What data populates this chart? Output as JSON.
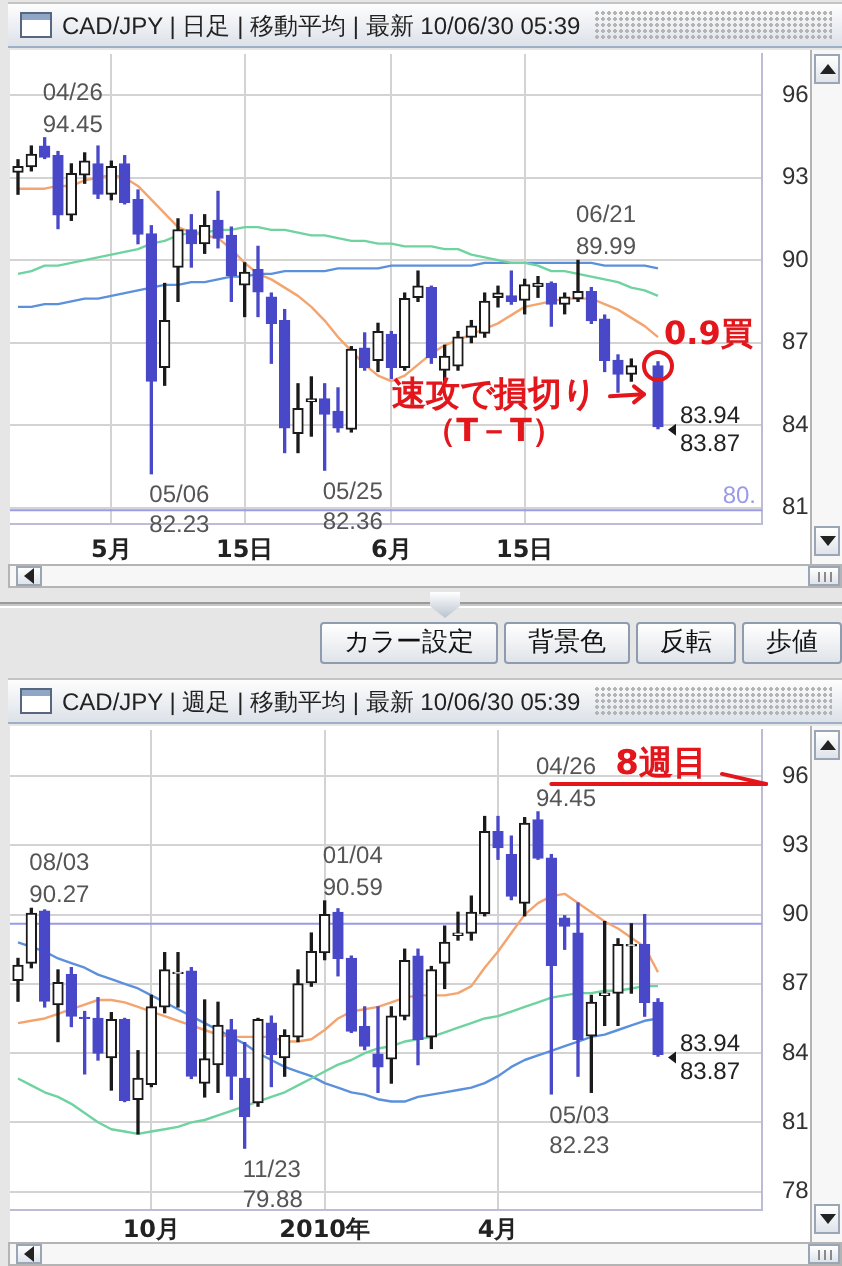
{
  "chart_data": [
    {
      "type": "candlestick",
      "title": "CAD/JPY | 日足 | 移動平均 | 最新 10/06/30 05:39",
      "categories": [
        null,
        null,
        null,
        null,
        null,
        null,
        null,
        "5月",
        null,
        null,
        null,
        null,
        null,
        null,
        null,
        null,
        null,
        "15日",
        null,
        null,
        null,
        null,
        null,
        null,
        null,
        null,
        null,
        null,
        "6月",
        null,
        null,
        null,
        null,
        null,
        null,
        null,
        null,
        null,
        "15日",
        null,
        null,
        null,
        null,
        null,
        null,
        null,
        null,
        null,
        null
      ],
      "ohlc": [
        [
          93.2,
          93.65,
          92.4,
          93.4
        ],
        [
          93.4,
          94.15,
          93.25,
          93.85
        ],
        [
          94.15,
          94.45,
          93.7,
          93.75
        ],
        [
          93.8,
          93.95,
          91.15,
          91.65
        ],
        [
          91.65,
          93.5,
          91.45,
          93.15
        ],
        [
          93.1,
          93.9,
          92.8,
          93.6
        ],
        [
          93.5,
          94.15,
          92.25,
          92.4
        ],
        [
          92.4,
          93.6,
          92.2,
          93.4
        ],
        [
          93.5,
          93.8,
          92.05,
          92.1
        ],
        [
          92.2,
          92.55,
          90.6,
          90.95
        ],
        [
          90.95,
          91.25,
          82.23,
          85.6
        ],
        [
          86.1,
          89.15,
          85.45,
          87.8
        ],
        [
          89.75,
          91.5,
          88.5,
          91.1
        ],
        [
          91.1,
          91.65,
          89.75,
          90.6
        ],
        [
          90.6,
          91.65,
          90.25,
          91.25
        ],
        [
          91.45,
          92.5,
          90.45,
          90.8
        ],
        [
          90.9,
          91.2,
          88.5,
          89.45
        ],
        [
          89.1,
          89.9,
          87.95,
          89.55
        ],
        [
          89.65,
          90.5,
          87.95,
          88.85
        ],
        [
          88.65,
          88.8,
          86.25,
          87.7
        ],
        [
          87.8,
          88.2,
          83.0,
          83.9
        ],
        [
          83.7,
          85.5,
          83.0,
          84.6
        ],
        [
          84.85,
          85.75,
          83.6,
          84.95
        ],
        [
          84.95,
          85.5,
          82.36,
          84.4
        ],
        [
          84.5,
          85.35,
          83.75,
          83.9
        ],
        [
          83.85,
          86.85,
          83.75,
          86.75
        ],
        [
          86.8,
          87.35,
          86.0,
          86.1
        ],
        [
          86.35,
          87.7,
          85.95,
          87.4
        ],
        [
          87.3,
          87.4,
          85.7,
          86.1
        ],
        [
          86.1,
          88.8,
          86.0,
          88.6
        ],
        [
          88.65,
          89.6,
          88.5,
          89.05
        ],
        [
          89.0,
          89.05,
          86.25,
          86.45
        ],
        [
          86.0,
          86.9,
          85.6,
          86.5
        ],
        [
          86.15,
          87.4,
          86.0,
          87.2
        ],
        [
          87.2,
          87.8,
          87.0,
          87.6
        ],
        [
          87.35,
          88.8,
          87.2,
          88.5
        ],
        [
          88.65,
          89.05,
          88.3,
          88.8
        ],
        [
          88.7,
          89.6,
          88.4,
          88.5
        ],
        [
          88.55,
          89.3,
          88.05,
          89.1
        ],
        [
          89.05,
          89.4,
          88.65,
          89.15
        ],
        [
          89.15,
          89.2,
          87.6,
          88.4
        ],
        [
          88.4,
          88.8,
          88.05,
          88.65
        ],
        [
          88.6,
          89.99,
          88.5,
          88.85
        ],
        [
          88.85,
          89.0,
          87.7,
          87.8
        ],
        [
          87.85,
          88.0,
          85.95,
          86.35
        ],
        [
          86.35,
          86.55,
          85.2,
          85.85
        ],
        [
          85.85,
          86.4,
          85.6,
          86.15
        ],
        null,
        [
          86.15,
          86.3,
          83.87,
          83.94
        ]
      ],
      "colors": [
        "#1a1a1a",
        "#1a1a1a",
        "#4848c8",
        "#4848c8",
        "#1a1a1a",
        "#1a1a1a",
        "#4848c8",
        "#1a1a1a",
        "#4848c8",
        "#4848c8",
        "#4848c8",
        "#1a1a1a",
        "#1a1a1a",
        "#4848c8",
        "#1a1a1a",
        "#4848c8",
        "#4848c8",
        "#1a1a1a",
        "#4848c8",
        "#4848c8",
        "#4848c8",
        "#1a1a1a",
        "#1a1a1a",
        "#4848c8",
        "#4848c8",
        "#1a1a1a",
        "#4848c8",
        "#1a1a1a",
        "#4848c8",
        "#1a1a1a",
        "#1a1a1a",
        "#4848c8",
        "#1a1a1a",
        "#1a1a1a",
        "#1a1a1a",
        "#1a1a1a",
        "#1a1a1a",
        "#4848c8",
        "#1a1a1a",
        "#1a1a1a",
        "#4848c8",
        "#1a1a1a",
        "#1a1a1a",
        "#4848c8",
        "#4848c8",
        "#4848c8",
        "#1a1a1a",
        null,
        "#4848c8"
      ],
      "series": [
        {
          "type": "line",
          "color": "#f4a46e",
          "values": [
            92.6,
            92.6,
            92.6,
            92.7,
            92.7,
            92.9,
            93.0,
            93.1,
            93.0,
            92.7,
            92.2,
            91.7,
            91.2,
            91.0,
            90.9,
            90.8,
            90.4,
            89.9,
            89.5,
            89.3,
            89.0,
            88.7,
            88.3,
            87.8,
            87.2,
            86.7,
            86.2,
            85.8,
            85.6,
            85.8,
            86.2,
            86.6,
            86.9,
            87.1,
            87.3,
            87.5,
            87.7,
            88.0,
            88.3,
            88.4,
            88.5,
            88.6,
            88.6,
            88.6,
            88.4,
            88.2,
            87.9,
            87.6,
            87.2
          ]
        },
        {
          "type": "line",
          "color": "#6fd3a0",
          "values": [
            89.5,
            89.6,
            89.8,
            89.8,
            89.9,
            90.0,
            90.1,
            90.2,
            90.3,
            90.4,
            90.6,
            90.7,
            90.9,
            91.0,
            91.0,
            91.1,
            91.1,
            91.2,
            91.2,
            91.1,
            91.1,
            91.0,
            90.9,
            90.9,
            90.8,
            90.7,
            90.7,
            90.6,
            90.6,
            90.5,
            90.5,
            90.5,
            90.4,
            90.4,
            90.2,
            90.1,
            90.0,
            89.9,
            89.9,
            89.8,
            89.6,
            89.6,
            89.5,
            89.4,
            89.3,
            89.2,
            89.0,
            88.9,
            88.7
          ]
        },
        {
          "type": "line",
          "color": "#5b90dc",
          "values": [
            88.3,
            88.3,
            88.4,
            88.4,
            88.5,
            88.6,
            88.6,
            88.7,
            88.8,
            88.9,
            89.0,
            89.1,
            89.1,
            89.2,
            89.2,
            89.3,
            89.4,
            89.4,
            89.5,
            89.5,
            89.6,
            89.6,
            89.6,
            89.6,
            89.7,
            89.7,
            89.7,
            89.7,
            89.8,
            89.8,
            89.8,
            89.8,
            89.8,
            89.8,
            89.8,
            89.9,
            89.9,
            89.9,
            89.9,
            89.9,
            89.9,
            89.9,
            89.9,
            89.9,
            89.8,
            89.8,
            89.8,
            89.8,
            89.7
          ]
        }
      ],
      "ylim": [
        80.4,
        97.5
      ],
      "yticks": [
        81,
        84,
        87,
        90,
        93,
        96
      ],
      "grid": true,
      "ref_lines": [
        {
          "axis": "y",
          "value": 80.9,
          "color": "#9a9ae8"
        }
      ],
      "annotations": [
        "04/26",
        "94.45",
        "05/06",
        "82.23",
        "05/25",
        "82.36",
        "06/21",
        "89.99",
        "83.94",
        "83.87",
        "80.",
        "0.9買",
        "速攻で損切り",
        "（T－T）",
        "カラー設定",
        "背景色",
        "反転",
        "歩値"
      ]
    },
    {
      "type": "candlestick",
      "title": "CAD/JPY | 週足 | 移動平均 | 最新 10/06/30 05:39",
      "categories": [
        null,
        null,
        null,
        null,
        null,
        null,
        null,
        null,
        null,
        null,
        "10月",
        null,
        null,
        null,
        null,
        null,
        null,
        null,
        null,
        null,
        null,
        null,
        null,
        "2010年",
        null,
        null,
        null,
        null,
        null,
        null,
        null,
        null,
        null,
        null,
        null,
        null,
        "4月",
        null,
        null,
        null,
        null,
        null,
        null,
        null,
        null,
        null,
        null,
        null,
        null
      ],
      "ohlc": [
        [
          87.15,
          88.1,
          86.25,
          87.8
        ],
        [
          87.9,
          90.27,
          87.7,
          90.05
        ],
        [
          90.15,
          90.2,
          86.0,
          86.25
        ],
        [
          86.1,
          87.6,
          84.5,
          87.05
        ],
        [
          87.4,
          87.7,
          85.15,
          85.6
        ],
        [
          85.55,
          85.8,
          83.1,
          85.5
        ],
        [
          85.5,
          86.4,
          83.7,
          84.0
        ],
        [
          83.8,
          85.75,
          82.4,
          85.45
        ],
        [
          85.45,
          85.5,
          81.9,
          81.95
        ],
        [
          82.0,
          84.1,
          80.5,
          82.9
        ],
        [
          82.65,
          86.5,
          82.55,
          86.0
        ],
        [
          86.0,
          88.35,
          85.75,
          87.6
        ],
        [
          87.45,
          88.35,
          86.0,
          87.5
        ],
        [
          87.55,
          87.7,
          82.9,
          83.0
        ],
        [
          82.7,
          86.3,
          82.1,
          83.75
        ],
        [
          83.5,
          86.2,
          82.3,
          85.2
        ],
        [
          85.0,
          85.45,
          82.0,
          83.0
        ],
        [
          82.9,
          84.45,
          79.88,
          81.25
        ],
        [
          81.85,
          85.5,
          81.7,
          85.45
        ],
        [
          85.3,
          85.6,
          82.55,
          83.95
        ],
        [
          83.8,
          85.0,
          83.0,
          84.75
        ],
        [
          84.7,
          87.6,
          84.5,
          87.0
        ],
        [
          87.05,
          89.2,
          86.9,
          88.4
        ],
        [
          88.35,
          90.59,
          88.05,
          90.0
        ],
        [
          90.1,
          90.25,
          87.35,
          88.1
        ],
        [
          88.1,
          88.2,
          84.9,
          84.95
        ],
        [
          85.15,
          86.0,
          84.15,
          84.3
        ],
        [
          83.95,
          86.0,
          82.3,
          83.4
        ],
        [
          83.75,
          86.0,
          82.7,
          85.6
        ],
        [
          85.6,
          88.5,
          85.45,
          88.0
        ],
        [
          88.2,
          88.5,
          83.5,
          84.6
        ],
        [
          84.7,
          87.75,
          84.2,
          87.6
        ],
        [
          87.9,
          89.5,
          86.8,
          88.8
        ],
        [
          89.1,
          90.1,
          88.9,
          89.2
        ],
        [
          89.2,
          90.8,
          88.9,
          90.1
        ],
        [
          90.05,
          94.25,
          89.95,
          93.6
        ],
        [
          93.6,
          94.25,
          92.4,
          92.9
        ],
        [
          92.6,
          93.4,
          90.65,
          90.8
        ],
        [
          90.5,
          94.2,
          89.95,
          93.95
        ],
        [
          94.1,
          94.45,
          92.4,
          92.45
        ],
        [
          92.45,
          92.6,
          82.23,
          87.8
        ],
        [
          89.85,
          89.95,
          88.5,
          89.5
        ],
        [
          89.2,
          90.5,
          83.0,
          84.6
        ],
        [
          84.75,
          86.5,
          82.3,
          86.2
        ],
        [
          86.5,
          89.7,
          85.2,
          86.6
        ],
        [
          86.6,
          88.95,
          85.2,
          88.7
        ],
        [
          88.65,
          89.6,
          86.6,
          88.7
        ],
        [
          88.7,
          90.0,
          85.6,
          86.2
        ],
        [
          86.2,
          86.35,
          83.87,
          83.94
        ]
      ],
      "colors": [
        "#1a1a1a",
        "#1a1a1a",
        "#4848c8",
        "#1a1a1a",
        "#4848c8",
        "#4848c8",
        "#4848c8",
        "#1a1a1a",
        "#4848c8",
        "#1a1a1a",
        "#1a1a1a",
        "#1a1a1a",
        "#1a1a1a",
        "#4848c8",
        "#1a1a1a",
        "#1a1a1a",
        "#4848c8",
        "#4848c8",
        "#1a1a1a",
        "#4848c8",
        "#1a1a1a",
        "#1a1a1a",
        "#1a1a1a",
        "#1a1a1a",
        "#4848c8",
        "#4848c8",
        "#4848c8",
        "#4848c8",
        "#1a1a1a",
        "#1a1a1a",
        "#4848c8",
        "#1a1a1a",
        "#1a1a1a",
        "#1a1a1a",
        "#1a1a1a",
        "#1a1a1a",
        "#4848c8",
        "#4848c8",
        "#1a1a1a",
        "#4848c8",
        "#4848c8",
        "#4848c8",
        "#4848c8",
        "#1a1a1a",
        "#1a1a1a",
        "#1a1a1a",
        "#1a1a1a",
        "#4848c8",
        "#4848c8"
      ],
      "series": [
        {
          "type": "line",
          "color": "#f4a46e",
          "values": [
            85.3,
            85.4,
            85.5,
            85.7,
            85.9,
            86.1,
            86.3,
            86.3,
            86.2,
            86.0,
            85.8,
            85.6,
            85.4,
            85.2,
            85.0,
            84.8,
            84.7,
            84.7,
            84.7,
            84.7,
            84.5,
            84.5,
            84.6,
            85.0,
            85.5,
            85.8,
            85.9,
            86.0,
            86.2,
            86.4,
            86.5,
            86.5,
            86.5,
            86.6,
            86.9,
            87.7,
            88.4,
            89.2,
            90.0,
            90.5,
            90.8,
            90.9,
            90.5,
            90.1,
            89.7,
            89.4,
            89.0,
            88.6,
            87.5
          ]
        },
        {
          "type": "line",
          "color": "#6fd3a0",
          "values": [
            82.9,
            82.6,
            82.3,
            82.1,
            81.8,
            81.4,
            81.0,
            80.7,
            80.6,
            80.5,
            80.6,
            80.7,
            80.8,
            81.0,
            81.1,
            81.3,
            81.5,
            81.7,
            81.9,
            82.1,
            82.3,
            82.6,
            82.9,
            83.2,
            83.5,
            83.7,
            84.0,
            84.2,
            84.3,
            84.5,
            84.6,
            84.7,
            84.9,
            85.1,
            85.3,
            85.5,
            85.6,
            85.8,
            86.0,
            86.2,
            86.4,
            86.5,
            86.6,
            86.6,
            86.7,
            86.7,
            86.8,
            86.9,
            86.9
          ]
        },
        {
          "type": "line",
          "color": "#5b90dc",
          "values": [
            88.8,
            88.6,
            88.4,
            88.1,
            87.9,
            87.7,
            87.4,
            87.2,
            87.0,
            86.8,
            86.5,
            86.2,
            85.9,
            85.6,
            85.3,
            85.0,
            84.7,
            84.4,
            84.0,
            83.7,
            83.4,
            83.2,
            83.0,
            82.7,
            82.5,
            82.3,
            82.2,
            82.0,
            81.9,
            81.9,
            82.1,
            82.2,
            82.3,
            82.4,
            82.5,
            82.7,
            83.0,
            83.4,
            83.7,
            83.9,
            84.1,
            84.3,
            84.5,
            84.7,
            84.8,
            85.0,
            85.2,
            85.4,
            85.5
          ]
        }
      ],
      "ylim": [
        77.2,
        98.0
      ],
      "yticks": [
        78,
        81,
        84,
        87,
        90,
        93,
        96
      ],
      "grid": true,
      "ref_lines": [
        {
          "axis": "y",
          "value": 89.6,
          "color": "#9a9ae8"
        }
      ],
      "annotations": [
        "08/03",
        "90.27",
        "11/23",
        "79.88",
        "01/04",
        "90.59",
        "04/26",
        "94.45",
        "05/03",
        "82.23",
        "83.94",
        "83.87",
        "8週目"
      ]
    }
  ]
}
